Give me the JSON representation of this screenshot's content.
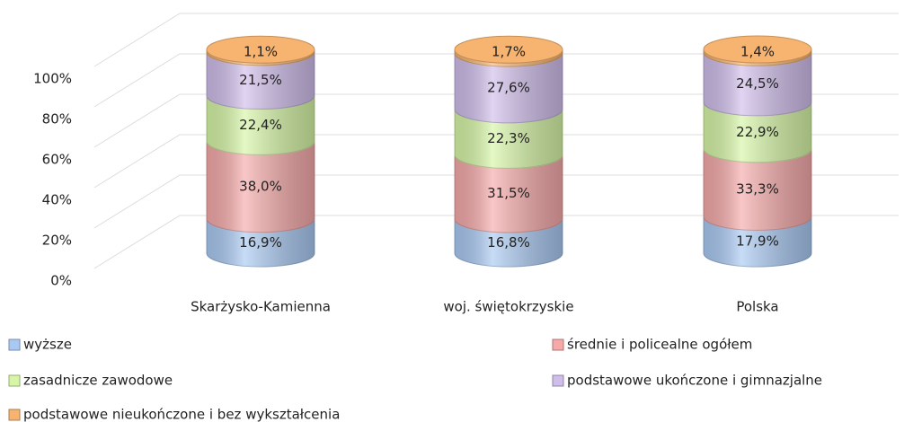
{
  "chart_data": {
    "type": "stacked-cylinder",
    "categories": [
      "Skarżysko-Kamienna",
      "woj. świętokrzyskie",
      "Polska"
    ],
    "series": [
      {
        "name": "wyższe",
        "color": "#a9c9f2",
        "values": [
          16.9,
          16.8,
          17.9
        ],
        "value_labels": [
          "16,9%",
          "16,8%",
          "17,9%"
        ]
      },
      {
        "name": "średnie i policealne ogółem",
        "color": "#f5a9a9",
        "values": [
          38.0,
          31.5,
          33.3
        ],
        "value_labels": [
          "38,0%",
          "31,5%",
          "33,3%"
        ]
      },
      {
        "name": "zasadnicze zawodowe",
        "color": "#d6f5a6",
        "values": [
          22.4,
          22.3,
          22.9
        ],
        "value_labels": [
          "22,4%",
          "22,3%",
          "22,9%"
        ]
      },
      {
        "name": "podstawowe ukończone i gimnazjalne",
        "color": "#cfbdea",
        "values": [
          21.5,
          27.6,
          24.5
        ],
        "value_labels": [
          "21,5%",
          "27,6%",
          "24,5%"
        ]
      },
      {
        "name": "podstawowe nieukończone i bez wykształcenia",
        "color": "#f6b470",
        "values": [
          1.1,
          1.7,
          1.4
        ],
        "value_labels": [
          "1,1%",
          "1,7%",
          "1,4%"
        ]
      }
    ],
    "ylim": [
      0,
      100
    ],
    "yticks": [
      {
        "value": 0,
        "label": "0%"
      },
      {
        "value": 20,
        "label": "20%"
      },
      {
        "value": 40,
        "label": "40%"
      },
      {
        "value": 60,
        "label": "60%"
      },
      {
        "value": 80,
        "label": "80%"
      },
      {
        "value": 100,
        "label": "100%"
      }
    ],
    "grid": true
  }
}
